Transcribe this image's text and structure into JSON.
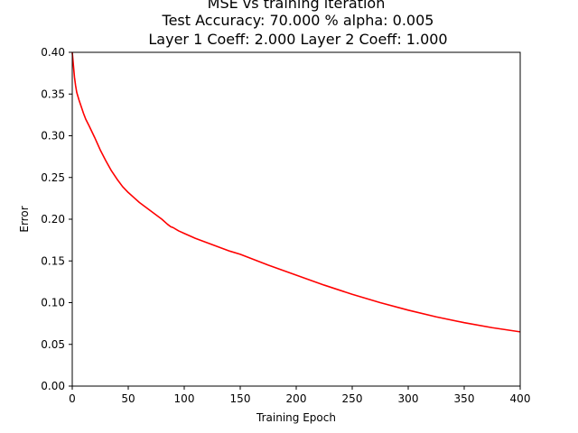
{
  "chart_data": {
    "type": "line",
    "title_lines": [
      "MSE vs training iteration",
      "Test Accuracy: 70.000 % alpha: 0.005",
      "Layer 1 Coeff: 2.000 Layer 2 Coeff: 1.000"
    ],
    "xlabel": "Training Epoch",
    "ylabel": "Error",
    "xlim": [
      0,
      400
    ],
    "ylim": [
      0,
      0.4
    ],
    "xticks": [
      0,
      50,
      100,
      150,
      200,
      250,
      300,
      350,
      400
    ],
    "xtick_labels": [
      "0",
      "50",
      "100",
      "150",
      "200",
      "250",
      "300",
      "350",
      "400"
    ],
    "yticks": [
      0,
      0.05,
      0.1,
      0.15,
      0.2,
      0.25,
      0.3,
      0.35,
      0.4
    ],
    "ytick_labels": [
      "0.00",
      "0.05",
      "0.10",
      "0.15",
      "0.20",
      "0.25",
      "0.30",
      "0.35",
      "0.40"
    ],
    "grid": false,
    "series": [
      {
        "color": "#ff0000",
        "x": [
          0,
          1,
          2,
          3,
          4,
          6,
          8,
          10,
          12,
          15,
          20,
          25,
          30,
          35,
          40,
          45,
          50,
          55,
          60,
          65,
          70,
          75,
          80,
          85,
          88,
          90,
          95,
          100,
          110,
          120,
          130,
          140,
          150,
          175,
          200,
          225,
          250,
          275,
          300,
          325,
          350,
          375,
          400
        ],
        "y": [
          0.4,
          0.385,
          0.37,
          0.36,
          0.352,
          0.343,
          0.335,
          0.327,
          0.32,
          0.312,
          0.298,
          0.283,
          0.27,
          0.258,
          0.248,
          0.239,
          0.232,
          0.226,
          0.22,
          0.215,
          0.21,
          0.205,
          0.2,
          0.194,
          0.191,
          0.19,
          0.186,
          0.183,
          0.177,
          0.172,
          0.167,
          0.162,
          0.158,
          0.145,
          0.133,
          0.121,
          0.11,
          0.1,
          0.091,
          0.083,
          0.076,
          0.07,
          0.065
        ]
      }
    ]
  }
}
